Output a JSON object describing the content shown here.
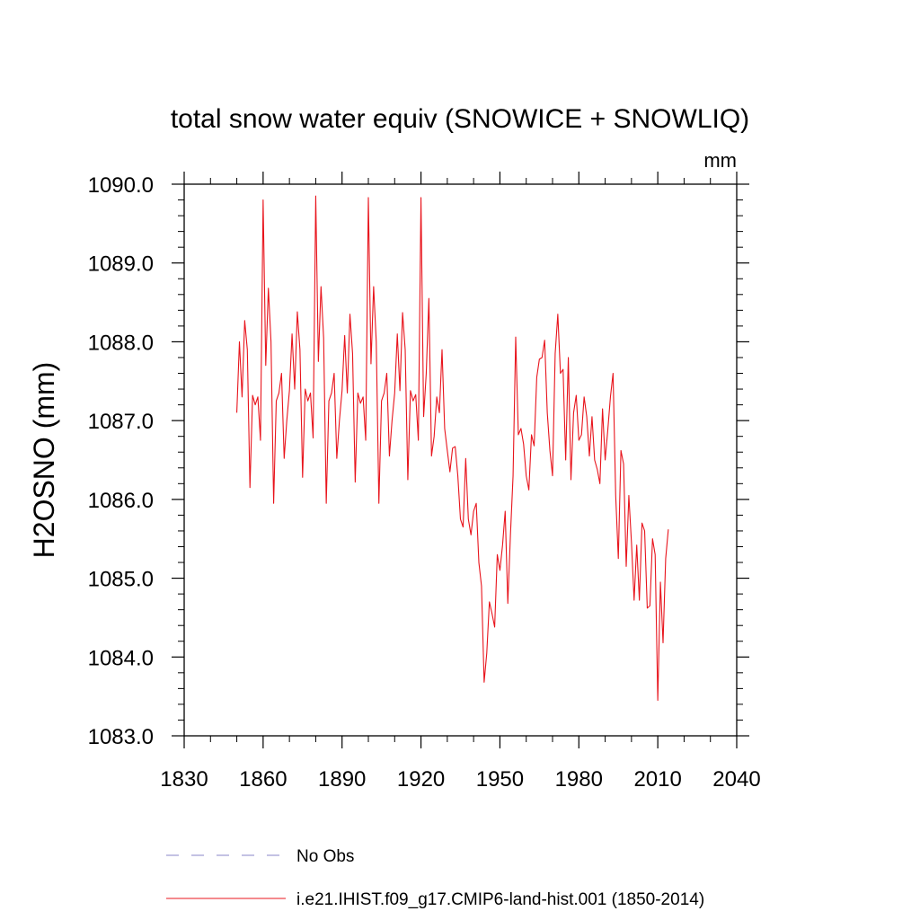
{
  "chart_data": {
    "type": "line",
    "title": "total snow water equiv (SNOWICE + SNOWLIQ)",
    "units_label": "mm",
    "ylabel": "H2OSNO  (mm)",
    "xlabel": "",
    "xlim": [
      1830,
      2040
    ],
    "ylim": [
      1083.0,
      1090.0
    ],
    "x_ticks": [
      1830,
      1860,
      1890,
      1920,
      1950,
      1980,
      2010,
      2040
    ],
    "x_tick_labels": [
      "1830",
      "1860",
      "1890",
      "1920",
      "1950",
      "1980",
      "2010",
      "2040"
    ],
    "y_ticks": [
      1083.0,
      1084.0,
      1085.0,
      1086.0,
      1087.0,
      1088.0,
      1089.0,
      1090.0
    ],
    "y_tick_labels": [
      "1083.0",
      "1084.0",
      "1085.0",
      "1086.0",
      "1087.0",
      "1088.0",
      "1089.0",
      "1090.0"
    ],
    "grid": false,
    "legend_position": "bottom",
    "legend": [
      {
        "name": "No Obs",
        "color": "#8a84c8",
        "style": "dashed"
      },
      {
        "name": "i.e21.IHIST.f09_g17.CMIP6-land-hist.001 (1850-2014)",
        "color": "#e8141c",
        "style": "solid"
      }
    ],
    "series": [
      {
        "name": "i.e21.IHIST.f09_g17.CMIP6-land-hist.001 (1850-2014)",
        "color": "#e8141c",
        "x_start": 1850,
        "x_step": 1,
        "values": [
          1087.1,
          1088.0,
          1087.3,
          1088.27,
          1087.9,
          1086.15,
          1087.32,
          1087.2,
          1087.3,
          1086.75,
          1089.8,
          1087.7,
          1088.68,
          1088.0,
          1085.95,
          1087.25,
          1087.35,
          1087.6,
          1086.52,
          1087.0,
          1087.38,
          1088.1,
          1087.4,
          1088.38,
          1087.9,
          1086.28,
          1087.4,
          1087.25,
          1087.35,
          1086.78,
          1089.85,
          1087.75,
          1088.7,
          1088.05,
          1085.95,
          1087.25,
          1087.35,
          1087.6,
          1086.52,
          1087.0,
          1087.38,
          1088.08,
          1087.35,
          1088.35,
          1087.85,
          1086.22,
          1087.35,
          1087.22,
          1087.3,
          1086.75,
          1089.83,
          1087.72,
          1088.7,
          1088.0,
          1085.95,
          1087.25,
          1087.35,
          1087.6,
          1086.55,
          1087.0,
          1087.35,
          1088.1,
          1087.38,
          1088.37,
          1087.9,
          1086.25,
          1087.38,
          1087.25,
          1087.33,
          1086.75,
          1089.83,
          1087.05,
          1087.6,
          1088.55,
          1086.55,
          1086.8,
          1087.3,
          1087.1,
          1087.9,
          1086.9,
          1086.62,
          1086.35,
          1086.65,
          1086.67,
          1086.3,
          1085.75,
          1085.65,
          1086.52,
          1085.75,
          1085.55,
          1085.85,
          1085.95,
          1085.2,
          1084.9,
          1083.68,
          1084.05,
          1084.7,
          1084.55,
          1084.38,
          1085.3,
          1085.1,
          1085.42,
          1085.85,
          1084.68,
          1085.55,
          1086.3,
          1088.06,
          1086.82,
          1086.9,
          1086.7,
          1086.3,
          1086.12,
          1086.82,
          1086.68,
          1087.55,
          1087.78,
          1087.8,
          1088.02,
          1087.1,
          1086.62,
          1086.3,
          1087.85,
          1088.35,
          1087.6,
          1087.65,
          1086.5,
          1087.8,
          1086.25,
          1087.1,
          1087.32,
          1086.75,
          1086.82,
          1087.3,
          1087.05,
          1086.55,
          1087.05,
          1086.5,
          1086.38,
          1086.2,
          1087.15,
          1086.5,
          1086.88,
          1087.3,
          1087.6,
          1086.05,
          1085.25,
          1086.62,
          1086.45,
          1085.15,
          1086.05,
          1085.45,
          1084.72,
          1085.42,
          1084.72,
          1085.7,
          1085.6,
          1084.62,
          1084.65,
          1085.5,
          1085.3,
          1083.45,
          1084.95,
          1084.18,
          1085.25,
          1085.62
        ]
      }
    ]
  }
}
